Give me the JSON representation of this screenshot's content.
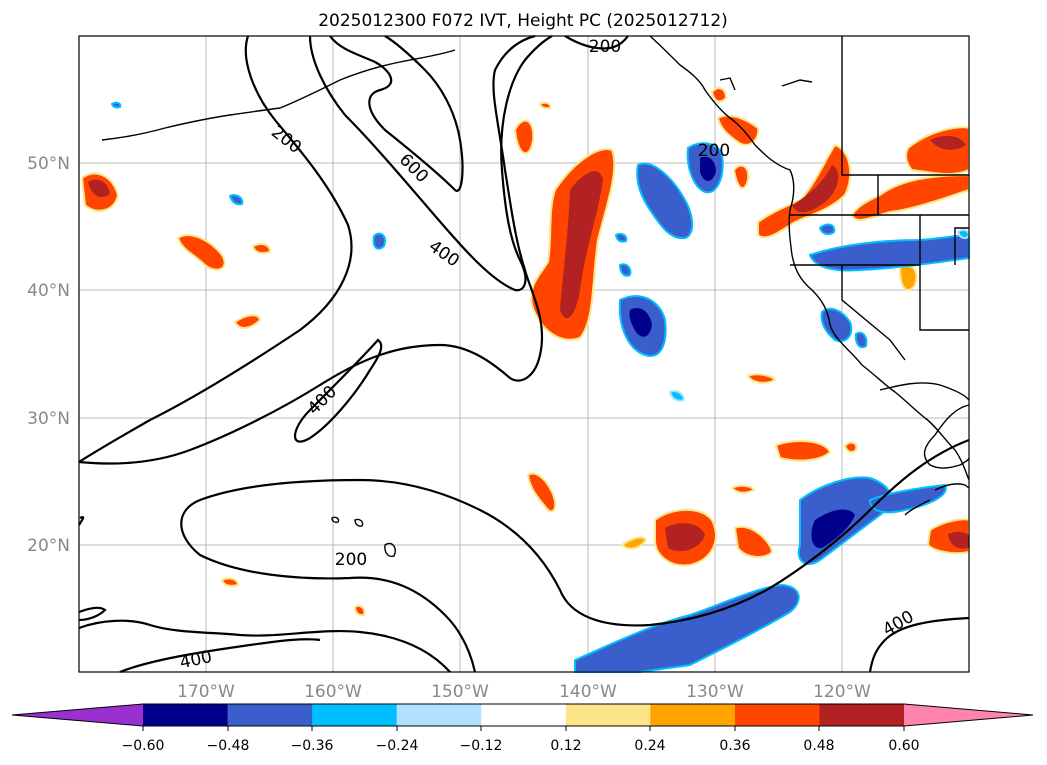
{
  "title": "2025012300 F072 IVT, Height PC (2025012712)",
  "lat_labels": [
    "50°N",
    "40°N",
    "30°N",
    "20°N"
  ],
  "lon_labels": [
    "170°W",
    "160°W",
    "150°W",
    "140°W",
    "130°W",
    "120°W"
  ],
  "contour_labels": [
    "200",
    "600",
    "400",
    "200",
    "400",
    "200",
    "400",
    "400",
    "200"
  ],
  "colorbar": {
    "ticks": [
      "−0.60",
      "−0.48",
      "−0.36",
      "−0.24",
      "−0.12",
      "0.12",
      "0.24",
      "0.36",
      "0.48",
      "0.60"
    ],
    "colors": [
      "#9b30d0",
      "#00008b",
      "#3a5fcd",
      "#00bfff",
      "#b0e2ff",
      "#ffffff",
      "#fde68a",
      "#ffa500",
      "#ff4500",
      "#b22222",
      "#ff85b0"
    ]
  },
  "map": {
    "projection": "cylindrical",
    "lon_range": [
      -180,
      -110
    ],
    "lat_range": [
      10,
      60
    ],
    "grid": true
  }
}
